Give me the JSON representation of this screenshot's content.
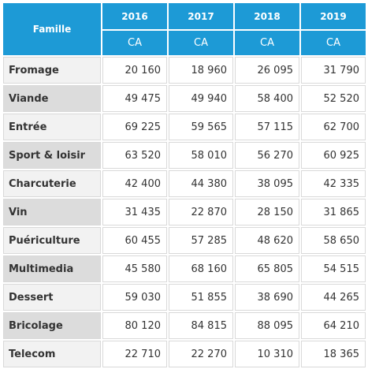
{
  "table": {
    "header": {
      "famille": "Famille",
      "years": [
        "2016",
        "2017",
        "2018",
        "2019"
      ],
      "sub": [
        "CA",
        "CA",
        "CA",
        "CA"
      ]
    },
    "rows": [
      {
        "label": "Fromage",
        "values": [
          "20 160",
          "18 960",
          "26 095",
          "31 790"
        ]
      },
      {
        "label": "Viande",
        "values": [
          "49 475",
          "49 940",
          "58 400",
          "52 520"
        ]
      },
      {
        "label": "Entrée",
        "values": [
          "69 225",
          "59 565",
          "57 115",
          "62 700"
        ]
      },
      {
        "label": "Sport & loisir",
        "values": [
          "63 520",
          "58 010",
          "56 270",
          "60 925"
        ]
      },
      {
        "label": "Charcuterie",
        "values": [
          "42 400",
          "44 380",
          "38 095",
          "42 335"
        ]
      },
      {
        "label": "Vin",
        "values": [
          "31 435",
          "22 870",
          "28 150",
          "31 865"
        ]
      },
      {
        "label": "Puériculture",
        "values": [
          "60 455",
          "57 285",
          "48 620",
          "58 650"
        ]
      },
      {
        "label": "Multimedia",
        "values": [
          "45 580",
          "68 160",
          "65 805",
          "54 515"
        ]
      },
      {
        "label": "Dessert",
        "values": [
          "59 030",
          "51 855",
          "38 690",
          "44 265"
        ]
      },
      {
        "label": "Bricolage",
        "values": [
          "80 120",
          "84 815",
          "88 095",
          "64 210"
        ]
      },
      {
        "label": "Telecom",
        "values": [
          "22 710",
          "22 270",
          "10 310",
          "18 365"
        ]
      }
    ]
  }
}
